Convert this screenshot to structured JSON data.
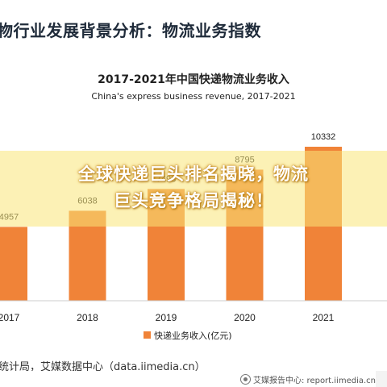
{
  "header": {
    "title": "物行业发展背景分析：物流业务指数"
  },
  "overlay": {
    "line1": "全球快递巨头排名揭晓，物流",
    "line2": "巨头竞争格局揭秘！"
  },
  "source": "统计局，艾媒数据中心（data.iimedia.cn）",
  "footer": {
    "text": "艾媒报告中心: report.iimedia.cn"
  },
  "chart_data": {
    "type": "bar",
    "title": "2017-2021年中国快递物流业务收入",
    "subtitle": "China's express business revenue, 2017-2021",
    "categories": [
      "2017",
      "2018",
      "2019",
      "2020",
      "2021"
    ],
    "values": [
      4957,
      6038,
      7498,
      8795,
      10332
    ],
    "value_labels": [
      "4957",
      "6038",
      "7498",
      "8795",
      "10332"
    ],
    "series": [
      {
        "name": "快递业务收入(亿元)",
        "values": [
          4957,
          6038,
          7498,
          8795,
          10332
        ]
      }
    ],
    "xlabel": "",
    "ylabel": "",
    "ylim": [
      0,
      10332
    ],
    "grid": false,
    "legend_position": "bottom",
    "colors": {
      "bar": "#f08338",
      "axis": "#cccccc",
      "text": "#222222"
    }
  }
}
